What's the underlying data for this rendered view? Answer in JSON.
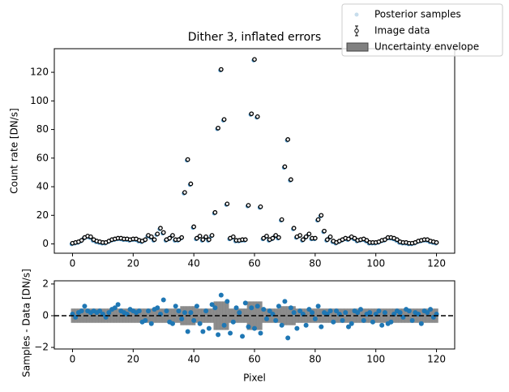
{
  "chart_data": [
    {
      "type": "scatter",
      "title": "Dither 3, inflated errors",
      "ylabel": "Count rate [DN/s]",
      "x": [
        0,
        1,
        2,
        3,
        4,
        5,
        6,
        7,
        8,
        9,
        10,
        11,
        12,
        13,
        14,
        15,
        16,
        17,
        18,
        19,
        20,
        21,
        22,
        23,
        24,
        25,
        26,
        27,
        28,
        29,
        30,
        31,
        32,
        33,
        34,
        35,
        36,
        37,
        38,
        39,
        40,
        41,
        42,
        43,
        44,
        45,
        46,
        47,
        48,
        49,
        50,
        51,
        52,
        53,
        54,
        55,
        56,
        57,
        58,
        59,
        60,
        61,
        62,
        63,
        64,
        65,
        66,
        67,
        68,
        69,
        70,
        71,
        72,
        73,
        74,
        75,
        76,
        77,
        78,
        79,
        80,
        81,
        82,
        83,
        84,
        85,
        86,
        87,
        88,
        89,
        90,
        91,
        92,
        93,
        94,
        95,
        96,
        97,
        98,
        99,
        100,
        101,
        102,
        103,
        104,
        105,
        106,
        107,
        108,
        109,
        110,
        111,
        112,
        113,
        114,
        115,
        116,
        117,
        118,
        119,
        120
      ],
      "series": [
        {
          "name": "Posterior samples",
          "color": "#1f77b4",
          "values": [
            0.5,
            1,
            1.5,
            2.5,
            4.5,
            5.5,
            5,
            3,
            2,
            1.5,
            1,
            1,
            2,
            3,
            3.5,
            4,
            4,
            3.5,
            3.5,
            3,
            3.5,
            3.5,
            2.5,
            2,
            3,
            6,
            5,
            3,
            7,
            11,
            8,
            3,
            4,
            6,
            3,
            3,
            4.5,
            36,
            59,
            42,
            12,
            4,
            5.5,
            3,
            5,
            3,
            6,
            22,
            81,
            122,
            87,
            28,
            4,
            5,
            2.5,
            2.5,
            3,
            3,
            27,
            91,
            129,
            89,
            26,
            4,
            5.5,
            3,
            4,
            6,
            4.5,
            17,
            54,
            73,
            45,
            11,
            5,
            6,
            3,
            5,
            7,
            4,
            4,
            17,
            20,
            9,
            3,
            5,
            2,
            1,
            2,
            3,
            4,
            3.5,
            5,
            4,
            2.5,
            3,
            3.5,
            2.5,
            1,
            1,
            1,
            1.5,
            2.5,
            3,
            4.5,
            4.5,
            4,
            3,
            1.5,
            1,
            1,
            0.5,
            0.5,
            1,
            2,
            2.5,
            3,
            3,
            2,
            1.5,
            1
          ]
        },
        {
          "name": "Image data",
          "color": "#000000",
          "values": [
            0.5,
            1,
            1.5,
            2.5,
            4.5,
            5.5,
            5,
            3,
            2,
            1.5,
            1,
            1,
            2,
            3,
            3.5,
            4,
            4,
            3.5,
            3.5,
            3,
            3.5,
            3.5,
            2.5,
            2,
            3,
            6,
            5,
            3,
            7,
            11,
            8,
            3,
            4,
            6,
            3,
            3,
            4.5,
            36,
            59,
            42,
            12,
            4,
            5.5,
            3,
            5,
            3,
            6,
            22,
            81,
            122,
            87,
            28,
            4,
            5,
            2.5,
            2.5,
            3,
            3,
            27,
            91,
            129,
            89,
            26,
            4,
            5.5,
            3,
            4,
            6,
            4.5,
            17,
            54,
            73,
            45,
            11,
            5,
            6,
            3,
            5,
            7,
            4,
            4,
            17,
            20,
            9,
            3,
            5,
            2,
            1,
            2,
            3,
            4,
            3.5,
            5,
            4,
            2.5,
            3,
            3.5,
            2.5,
            1,
            1,
            1,
            1.5,
            2.5,
            3,
            4.5,
            4.5,
            4,
            3,
            1.5,
            1,
            1,
            0.5,
            0.5,
            1,
            2,
            2.5,
            3,
            3,
            2,
            1.5,
            1
          ]
        }
      ],
      "xlim": [
        -6,
        126
      ],
      "ylim": [
        -6.5,
        136.5
      ],
      "xticks": [
        0,
        20,
        40,
        60,
        80,
        100,
        120
      ],
      "yticks": [
        0,
        20,
        40,
        60,
        80,
        100,
        120
      ],
      "legend": "upper right"
    },
    {
      "type": "residual",
      "xlabel": "Pixel",
      "ylabel": "Samples - Data [DN/s]",
      "series": [
        {
          "name": "Uncertainty envelope",
          "color": "#808080",
          "values": [
            0.45,
            0.45,
            0.45,
            0.45,
            0.45,
            0.45,
            0.45,
            0.45,
            0.45,
            0.45,
            0.45,
            0.45,
            0.45,
            0.45,
            0.45,
            0.45,
            0.45,
            0.45,
            0.45,
            0.45,
            0.45,
            0.45,
            0.45,
            0.45,
            0.45,
            0.45,
            0.45,
            0.45,
            0.45,
            0.45,
            0.45,
            0.45,
            0.45,
            0.45,
            0.45,
            0.45,
            0.6,
            0.6,
            0.6,
            0.6,
            0.6,
            0.45,
            0.45,
            0.45,
            0.45,
            0.45,
            0.45,
            0.9,
            0.9,
            0.9,
            0.9,
            0.9,
            0.45,
            0.45,
            0.45,
            0.45,
            0.45,
            0.45,
            0.9,
            0.9,
            0.9,
            0.9,
            0.9,
            0.45,
            0.45,
            0.45,
            0.45,
            0.45,
            0.45,
            0.6,
            0.6,
            0.6,
            0.6,
            0.6,
            0.45,
            0.45,
            0.45,
            0.45,
            0.45,
            0.45,
            0.45,
            0.45,
            0.45,
            0.45,
            0.45,
            0.45,
            0.45,
            0.45,
            0.45,
            0.45,
            0.45,
            0.45,
            0.45,
            0.45,
            0.45,
            0.45,
            0.45,
            0.45,
            0.45,
            0.45,
            0.45,
            0.45,
            0.45,
            0.45,
            0.45,
            0.45,
            0.45,
            0.45,
            0.45,
            0.45,
            0.45,
            0.45,
            0.45,
            0.45,
            0.45,
            0.45,
            0.45,
            0.45,
            0.45,
            0.45,
            0.45
          ]
        }
      ],
      "residuals": {
        "color": "#1f77b4",
        "values": [
          0.1,
          -0.1,
          0.2,
          0.3,
          0.6,
          0.3,
          0.2,
          0.3,
          0.2,
          0.3,
          0.1,
          -0.1,
          0.2,
          0.4,
          0.5,
          0.7,
          0.3,
          0.2,
          0.1,
          0.4,
          0.3,
          0.2,
          0.3,
          -0.4,
          -0.3,
          0.3,
          -0.5,
          0.4,
          0.5,
          0.1,
          1.0,
          0.3,
          -0.4,
          -0.5,
          0.6,
          0.3,
          -0.2,
          0.2,
          -1.0,
          0.2,
          -0.3,
          0.6,
          -0.5,
          -1.0,
          0.3,
          -0.8,
          0.7,
          0.5,
          -1.2,
          1.3,
          -0.6,
          0.9,
          -1.1,
          -0.4,
          0.5,
          0.2,
          -1.3,
          0.8,
          -0.7,
          0.5,
          -0.8,
          0.6,
          -1.1,
          0.4,
          -0.2,
          0.3,
          0.1,
          -0.3,
          0.6,
          -0.6,
          0.9,
          -1.4,
          0.5,
          0.2,
          -0.8,
          0.3,
          0.1,
          -0.6,
          0.4,
          0.2,
          -0.2,
          0.6,
          -0.7,
          0.2,
          0.1,
          0.3,
          -0.4,
          0.3,
          0.1,
          -0.3,
          0.2,
          -0.7,
          -0.5,
          0.3,
          0.2,
          0.4,
          -0.3,
          0.1,
          0.2,
          -0.4,
          0.1,
          0.3,
          -0.6,
          0.2,
          -0.5,
          -0.4,
          0.1,
          0.3,
          0.2,
          -0.1,
          0.4,
          0.3,
          -0.3,
          0.2,
          0.1,
          -0.5,
          0.3,
          0.2,
          0.4,
          -0.1,
          0.1
        ]
      },
      "hline": 0,
      "xlim": [
        -6,
        126
      ],
      "ylim": [
        -2.1,
        2.2
      ],
      "xticks": [
        0,
        20,
        40,
        60,
        80,
        100,
        120
      ],
      "yticks": [
        {
          "value": -2,
          "label": "−2"
        },
        0,
        2
      ]
    }
  ]
}
